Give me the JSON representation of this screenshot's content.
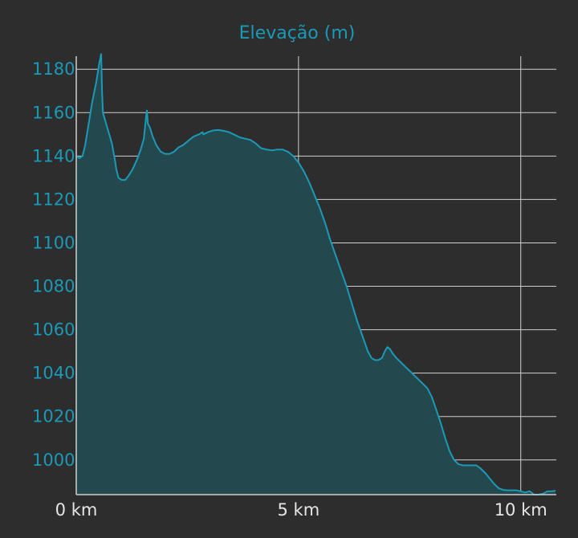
{
  "chart_data": {
    "type": "area",
    "title": "Elevação (m)",
    "xlabel": "",
    "ylabel": "",
    "xlim": [
      0,
      10.8
    ],
    "ylim": [
      984,
      1186
    ],
    "x_ticks": [
      {
        "value": 0,
        "label": "0 km"
      },
      {
        "value": 5,
        "label": "5 km"
      },
      {
        "value": 10,
        "label": "10 km"
      }
    ],
    "y_ticks": [
      {
        "value": 1000,
        "label": "1000"
      },
      {
        "value": 1020,
        "label": "1020"
      },
      {
        "value": 1040,
        "label": "1040"
      },
      {
        "value": 1060,
        "label": "1060"
      },
      {
        "value": 1080,
        "label": "1080"
      },
      {
        "value": 1100,
        "label": "1100"
      },
      {
        "value": 1120,
        "label": "1120"
      },
      {
        "value": 1140,
        "label": "1140"
      },
      {
        "value": 1160,
        "label": "1160"
      },
      {
        "value": 1180,
        "label": "1180"
      }
    ],
    "grid": {
      "horizontal": true,
      "vertical": true
    },
    "colors": {
      "background": "#2d2d2d",
      "line": "#1b9ab8",
      "fill": "#23494f",
      "grid": "#cfcfcf",
      "axis": "#cfcfcf",
      "title": "#1b9ab8",
      "y_tick_text": "#1b9ab8",
      "x_tick_text": "#e6e6e6"
    },
    "series": [
      {
        "x": [
          0.0,
          0.07,
          0.14,
          0.2,
          0.28,
          0.36,
          0.45,
          0.52,
          0.56,
          0.58,
          0.6,
          0.67,
          0.8,
          0.88,
          0.9,
          0.95,
          1.02,
          1.1,
          1.18,
          1.27,
          1.36,
          1.45,
          1.52,
          1.57,
          1.59,
          1.61,
          1.66,
          1.72,
          1.8,
          1.9,
          2.0,
          2.1,
          2.2,
          2.3,
          2.4,
          2.52,
          2.64,
          2.76,
          2.84,
          2.86,
          2.96,
          3.08,
          3.2,
          3.32,
          3.44,
          3.56,
          3.68,
          3.8,
          3.92,
          4.04,
          4.16,
          4.28,
          4.4,
          4.52,
          4.64,
          4.76,
          4.88,
          5.0,
          5.12,
          5.24,
          5.36,
          5.48,
          5.6,
          5.72,
          5.84,
          5.96,
          6.08,
          6.2,
          6.32,
          6.44,
          6.56,
          6.64,
          6.72,
          6.8,
          6.88,
          6.94,
          7.0,
          7.06,
          7.12,
          7.2,
          7.3,
          7.4,
          7.5,
          7.6,
          7.7,
          7.8,
          7.9,
          8.0,
          8.1,
          8.2,
          8.3,
          8.4,
          8.5,
          8.6,
          8.7,
          8.8,
          8.9,
          9.0,
          9.1,
          9.2,
          9.3,
          9.4,
          9.5,
          9.6,
          9.7,
          9.8,
          9.9,
          10.0,
          10.1,
          10.2,
          10.3,
          10.4,
          10.5,
          10.6,
          10.7,
          10.75,
          10.78
        ],
        "y": [
          1140.0,
          1139.0,
          1140.0,
          1145.0,
          1155.0,
          1165.0,
          1174.0,
          1183.0,
          1187.0,
          1170.0,
          1160.0,
          1155.0,
          1146.0,
          1137.0,
          1134.0,
          1130.0,
          1129.0,
          1129.0,
          1131.0,
          1134.0,
          1138.0,
          1143.0,
          1148.0,
          1158.0,
          1161.0,
          1155.0,
          1153.0,
          1149.0,
          1145.0,
          1142.0,
          1141.0,
          1141.0,
          1142.0,
          1144.0,
          1145.0,
          1147.0,
          1149.0,
          1150.0,
          1151.0,
          1150.0,
          1151.0,
          1151.8,
          1152.0,
          1151.6,
          1151.0,
          1149.8,
          1148.6,
          1148.0,
          1147.4,
          1145.8,
          1143.6,
          1143.0,
          1142.6,
          1143.0,
          1143.0,
          1142.0,
          1140.0,
          1137.0,
          1133.0,
          1128.0,
          1122.0,
          1116.0,
          1109.0,
          1101.0,
          1094.0,
          1087.0,
          1080.0,
          1072.0,
          1064.0,
          1057.0,
          1050.0,
          1047.0,
          1046.0,
          1046.0,
          1047.0,
          1050.0,
          1052.0,
          1051.0,
          1049.0,
          1047.0,
          1045.0,
          1043.0,
          1041.0,
          1039.0,
          1037.0,
          1035.0,
          1033.0,
          1029.0,
          1023.0,
          1017.0,
          1010.0,
          1004.0,
          1000.0,
          998.0,
          997.5,
          997.5,
          997.5,
          997.5,
          996.0,
          994.0,
          991.5,
          989.0,
          987.0,
          986.2,
          986.0,
          986.0,
          986.0,
          985.5,
          985.0,
          985.6,
          984.0,
          984.0,
          984.4,
          985.5,
          985.6,
          985.7,
          985.8
        ]
      }
    ]
  }
}
